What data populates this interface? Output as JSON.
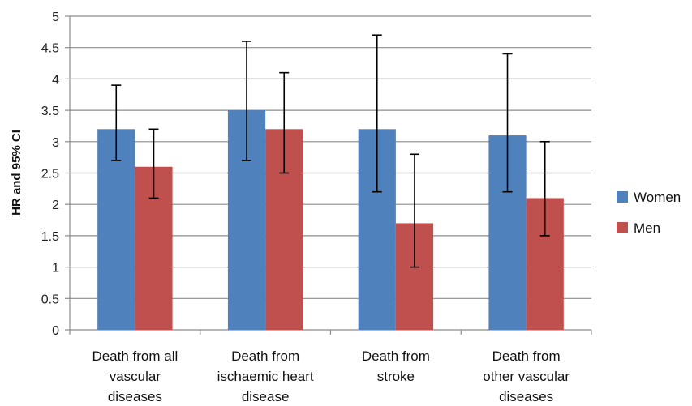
{
  "chart_data": {
    "type": "bar",
    "title": "",
    "xlabel": "",
    "ylabel": "HR and 95% CI",
    "ylim": [
      0,
      5
    ],
    "yticks": [
      "0",
      "0.5",
      "1",
      "1.5",
      "2",
      "2.5",
      "3",
      "3.5",
      "4",
      "4.5",
      "5"
    ],
    "grid": true,
    "legend_position": "right",
    "categories": [
      [
        "Death from all",
        "vascular",
        "diseases"
      ],
      [
        "Death from",
        "ischaemic heart",
        "disease"
      ],
      [
        "Death from",
        "stroke"
      ],
      [
        "Death from",
        "other vascular",
        "diseases"
      ]
    ],
    "series": [
      {
        "name": "Women",
        "color": "#4F81BD",
        "values": [
          3.2,
          3.5,
          3.2,
          3.1
        ],
        "ci_lower": [
          2.7,
          2.7,
          2.2,
          2.2
        ],
        "ci_upper": [
          3.9,
          4.6,
          4.7,
          4.4
        ]
      },
      {
        "name": "Men",
        "color": "#C0504D",
        "values": [
          2.6,
          3.2,
          1.7,
          2.1
        ],
        "ci_lower": [
          2.1,
          2.5,
          1.0,
          1.5
        ],
        "ci_upper": [
          3.2,
          4.1,
          2.8,
          3.0
        ]
      }
    ]
  }
}
